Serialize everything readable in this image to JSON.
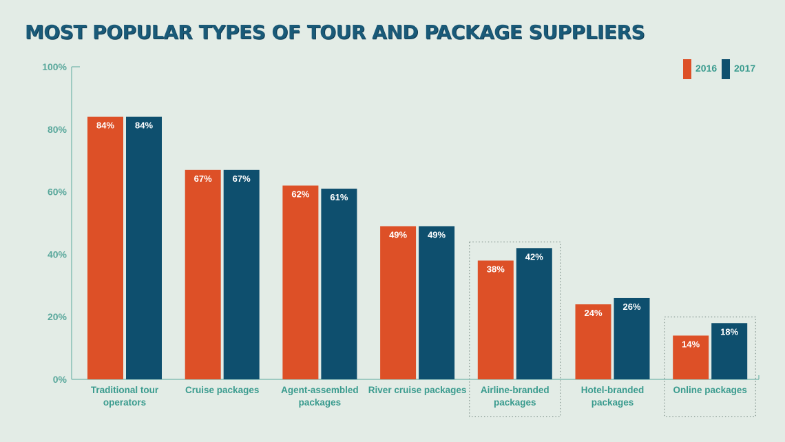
{
  "title": "MOST POPULAR TYPES OF TOUR AND PACKAGE SUPPLIERS",
  "colors": {
    "background": "#e3ece6",
    "series_2016": "#dd5027",
    "series_2017": "#0e4f6e",
    "axis": "#5aa89c",
    "title": "#1a5a78",
    "category_label": "#3a9b8e"
  },
  "chart_data": {
    "type": "bar",
    "categories": [
      [
        "Traditional tour",
        "operators"
      ],
      [
        "Cruise packages"
      ],
      [
        "Agent-assembled",
        "packages"
      ],
      [
        "River cruise packages"
      ],
      [
        "Airline-branded",
        "packages"
      ],
      [
        "Hotel-branded",
        "packages"
      ],
      [
        "Online packages"
      ]
    ],
    "series": [
      {
        "name": "2016",
        "values": [
          84,
          67,
          62,
          49,
          38,
          24,
          14
        ]
      },
      {
        "name": "2017",
        "values": [
          84,
          67,
          61,
          49,
          42,
          26,
          18
        ]
      }
    ],
    "value_suffix": "%",
    "ylim": [
      0,
      100
    ],
    "yticks": [
      "0%",
      "20%",
      "40%",
      "60%",
      "80%",
      "100%"
    ],
    "highlighted_categories": [
      4,
      6
    ],
    "legend_position": "top-right",
    "grid": false
  }
}
